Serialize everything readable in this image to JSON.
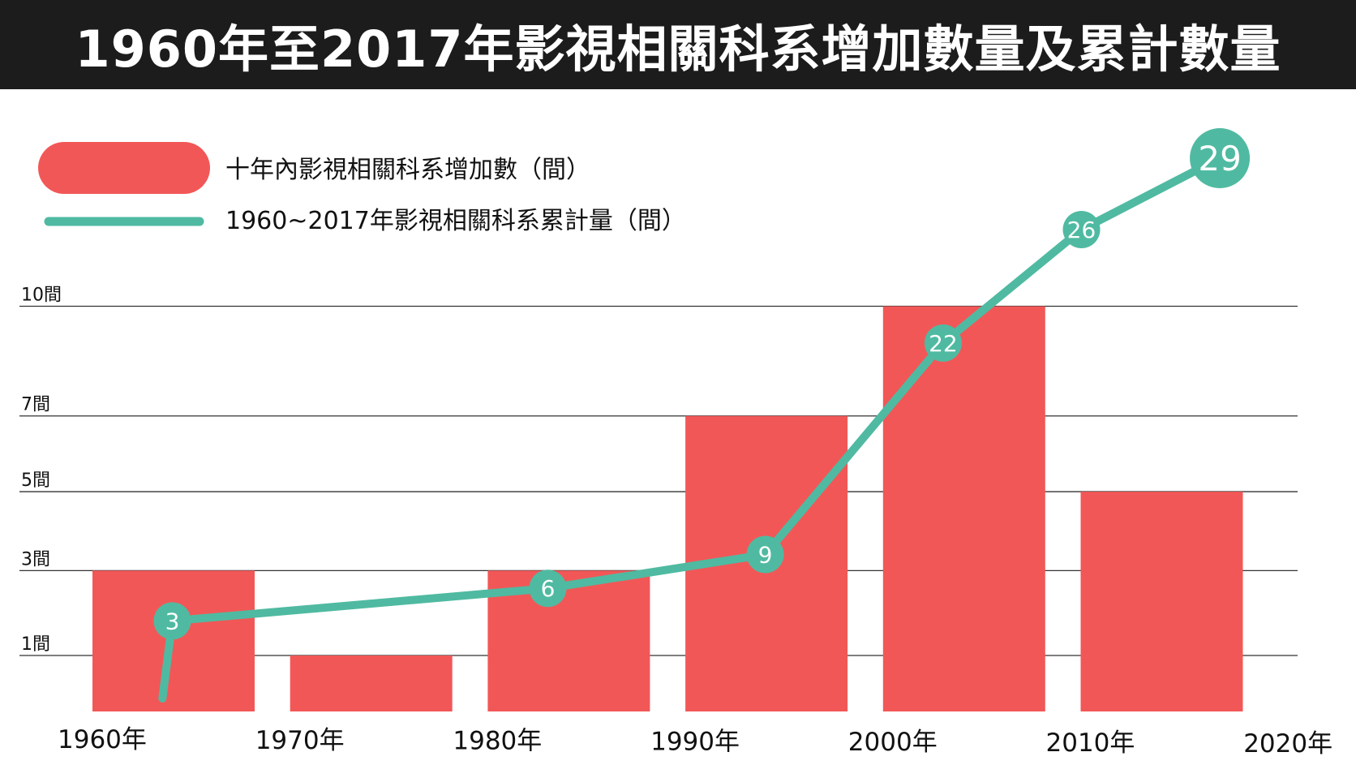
{
  "chart_data": {
    "type": "bar",
    "title": "1960年至2017年影視相關科系增加數量及累計數量",
    "legend": [
      {
        "name": "十年內影視相關科系增加數（間）",
        "color": "#f25757",
        "kind": "bar"
      },
      {
        "name": "1960~2017年影視相關科系累計量（間）",
        "color": "#4fbaa1",
        "kind": "line"
      }
    ],
    "x_tick_labels": [
      "1960年",
      "1970年",
      "1980年",
      "1990年",
      "2000年",
      "2010年",
      "2020年"
    ],
    "y_tick_labels": [
      {
        "value": 1,
        "label": "1間"
      },
      {
        "value": 3,
        "label": "3間"
      },
      {
        "value": 5,
        "label": "5間"
      },
      {
        "value": 7,
        "label": "7間"
      },
      {
        "value": 10,
        "label": "10間"
      }
    ],
    "ylim": [
      0,
      10
    ],
    "bar_series": {
      "name": "十年內影視相關科系增加數（間）",
      "categories": [
        "1960s",
        "1970s",
        "1980s",
        "1990s",
        "2000s",
        "2010s"
      ],
      "values": [
        3,
        1,
        3,
        7,
        10,
        5
      ]
    },
    "line_series": {
      "name": "1960~2017年影視相關科系累計量（間）",
      "points": [
        {
          "year": 1964,
          "value": 3
        },
        {
          "year": 1983,
          "value": 6
        },
        {
          "year": 1994,
          "value": 9
        },
        {
          "year": 2003,
          "value": 22
        },
        {
          "year": 2010,
          "value": 26
        },
        {
          "year": 2017,
          "value": 29
        }
      ],
      "labels": [
        "3",
        "6",
        "9",
        "22",
        "26",
        "29"
      ]
    },
    "grid": "horizontal",
    "legend_position": "top-left"
  }
}
